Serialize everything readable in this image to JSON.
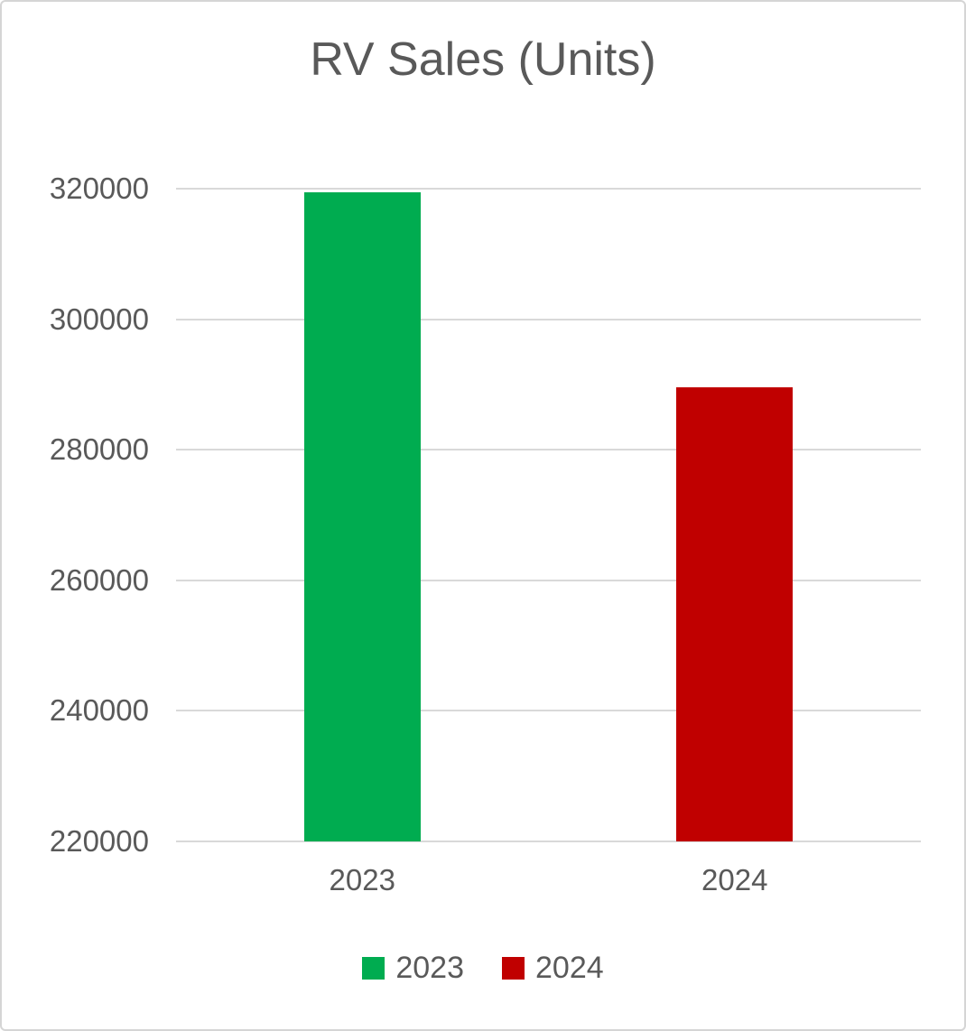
{
  "card": {
    "background": "#FFFFFF",
    "border_color": "#D5D5D5"
  },
  "chart_data": {
    "type": "bar",
    "title": "RV Sales (Units)",
    "categories": [
      "2023",
      "2024"
    ],
    "series": [
      {
        "name": "2023",
        "value": 319500,
        "color": "#00AC50"
      },
      {
        "name": "2024",
        "value": 289600,
        "color": "#C00000"
      }
    ],
    "xlabel": "",
    "ylabel": "",
    "ylim": [
      220000,
      320000
    ],
    "ytick_step": 20000,
    "yticks": [
      220000,
      240000,
      260000,
      280000,
      300000,
      320000
    ],
    "ytick_labels": [
      "220000",
      "240000",
      "260000",
      "280000",
      "300000",
      "320000"
    ],
    "grid": true,
    "gridline_color": "#D9D9D9",
    "text_color": "#595959",
    "legend_position": "bottom",
    "legend_entries": [
      "2023",
      "2024"
    ]
  }
}
